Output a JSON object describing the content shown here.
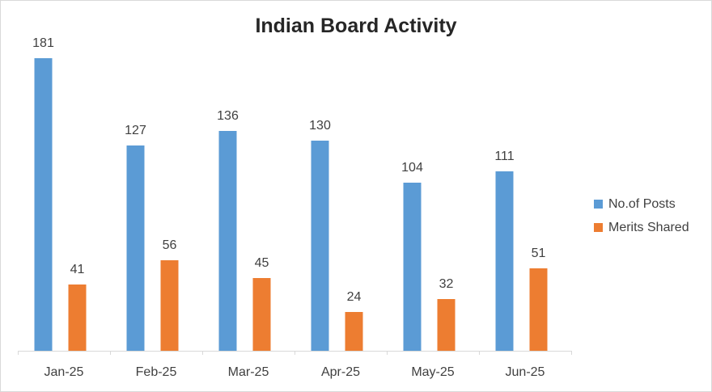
{
  "chart_data": {
    "type": "bar",
    "title": "Indian Board Activity",
    "xlabel": "",
    "ylabel": "",
    "categories": [
      "Jan-25",
      "Feb-25",
      "Mar-25",
      "Apr-25",
      "May-25",
      "Jun-25"
    ],
    "series": [
      {
        "name": "No.of Posts",
        "color": "#5b9bd5",
        "values": [
          181,
          127,
          136,
          130,
          104,
          111
        ]
      },
      {
        "name": "Merits Shared",
        "color": "#ed7d31",
        "values": [
          41,
          56,
          45,
          24,
          32,
          51
        ]
      }
    ],
    "ylim": [
      0,
      200
    ],
    "grid": false,
    "data_labels": true,
    "legend_position": "right"
  }
}
